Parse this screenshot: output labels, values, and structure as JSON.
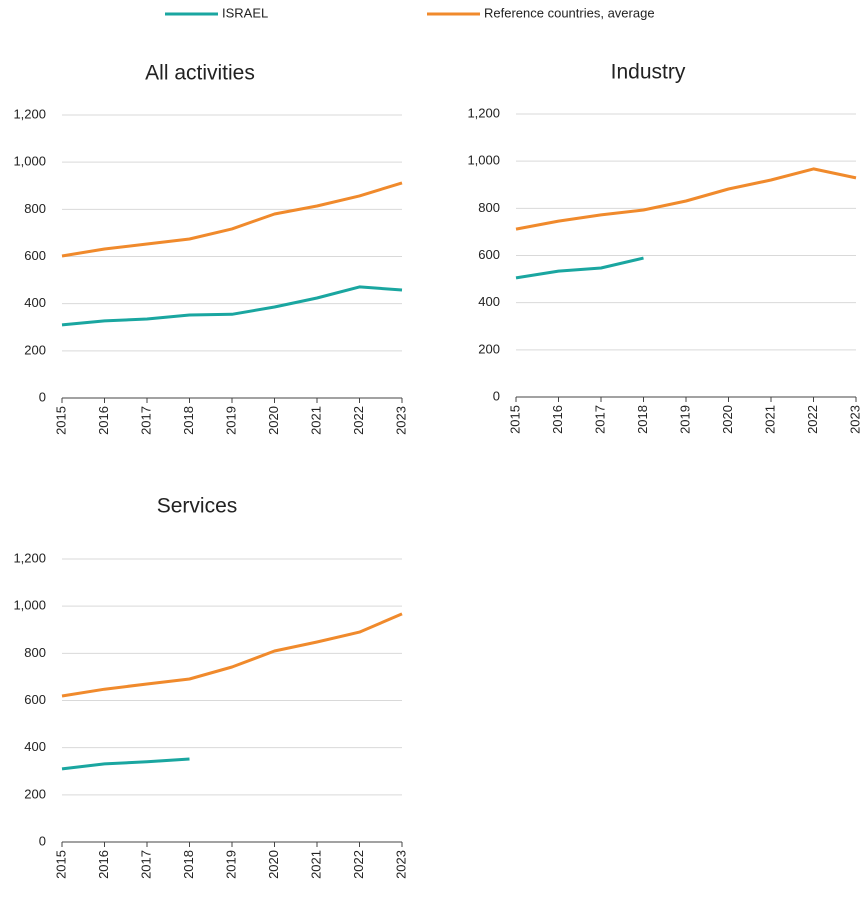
{
  "chart_data": [
    {
      "type": "line",
      "title": "All activities",
      "categories": [
        "2015",
        "2016",
        "2017",
        "2018",
        "2019",
        "2020",
        "2021",
        "2022",
        "2023"
      ],
      "series": [
        {
          "name": "ISRAEL",
          "color": "#1aa6a0",
          "values": [
            310,
            327,
            335,
            352,
            355,
            386,
            424,
            471,
            458
          ]
        },
        {
          "name": "Reference countries, average",
          "color": "#f08a2c",
          "values": [
            602,
            632,
            653,
            674,
            717,
            780,
            814,
            857,
            912
          ]
        }
      ],
      "ylim": [
        0,
        1200
      ],
      "yticks": [
        0,
        200,
        400,
        600,
        800,
        {
          "value": 1000,
          "label": "1,000"
        },
        {
          "value": 1200,
          "label": "1,200"
        }
      ],
      "grid": true
    },
    {
      "type": "line",
      "title": "Industry",
      "categories": [
        "2015",
        "2016",
        "2017",
        "2018",
        "2019",
        "2020",
        "2021",
        "2022",
        "2023"
      ],
      "series": [
        {
          "color": "#1aa6a0",
          "values": [
            505,
            534,
            547,
            589,
            null,
            null,
            null,
            null,
            null
          ]
        },
        {
          "color": "#f08a2c",
          "values": [
            712,
            746,
            772,
            793,
            831,
            882,
            920,
            967,
            929
          ]
        }
      ],
      "ylim": [
        0,
        1200
      ],
      "yticks": [
        0,
        200,
        400,
        600,
        800,
        {
          "value": 1000,
          "label": "1,000"
        },
        {
          "value": 1200,
          "label": "1,200"
        }
      ],
      "grid": true
    },
    {
      "type": "line",
      "title": "Services",
      "categories": [
        "2015",
        "2016",
        "2017",
        "2018",
        "2019",
        "2020",
        "2021",
        "2022",
        "2023"
      ],
      "series": [
        {
          "color": "#1aa6a0",
          "values": [
            310,
            331,
            340,
            352,
            null,
            null,
            null,
            null,
            null
          ]
        },
        {
          "color": "#f08a2c",
          "values": [
            619,
            648,
            670,
            691,
            742,
            810,
            848,
            890,
            967
          ]
        }
      ],
      "ylim": [
        0,
        1200
      ],
      "yticks": [
        0,
        200,
        400,
        600,
        800,
        {
          "value": 1000,
          "label": "1,000"
        },
        {
          "value": 1200,
          "label": "1,200"
        }
      ],
      "grid": true
    }
  ]
}
